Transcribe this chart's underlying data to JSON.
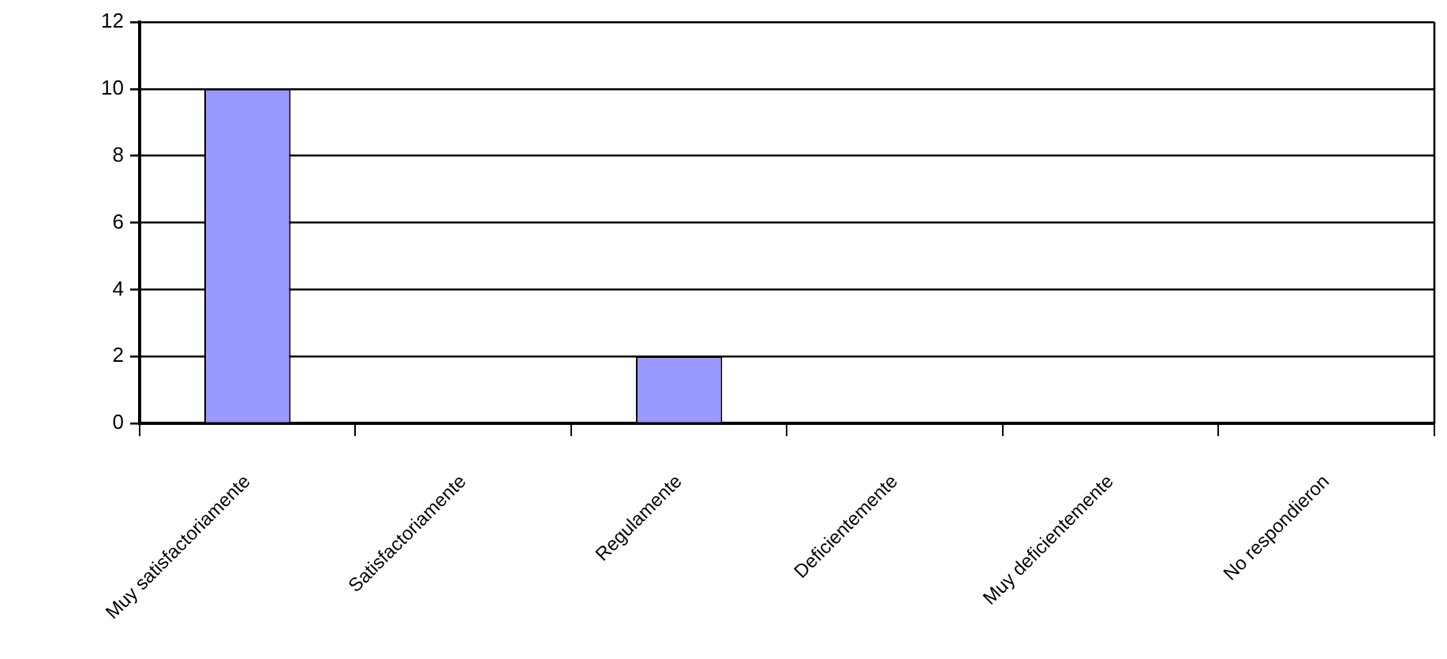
{
  "chart_data": {
    "type": "bar",
    "categories": [
      "Muy satisfactoriamente",
      "Satisfactoriamente",
      "Regulamente",
      "Deficientemente",
      "Muy deficientemente",
      "No respondieron"
    ],
    "values": [
      10,
      0,
      2,
      0,
      0,
      0
    ],
    "color": "#9999ff",
    "ylim": [
      0,
      12
    ],
    "yticks": [
      0,
      2,
      4,
      6,
      8,
      10,
      12
    ],
    "grid": "y",
    "legend": false
  }
}
